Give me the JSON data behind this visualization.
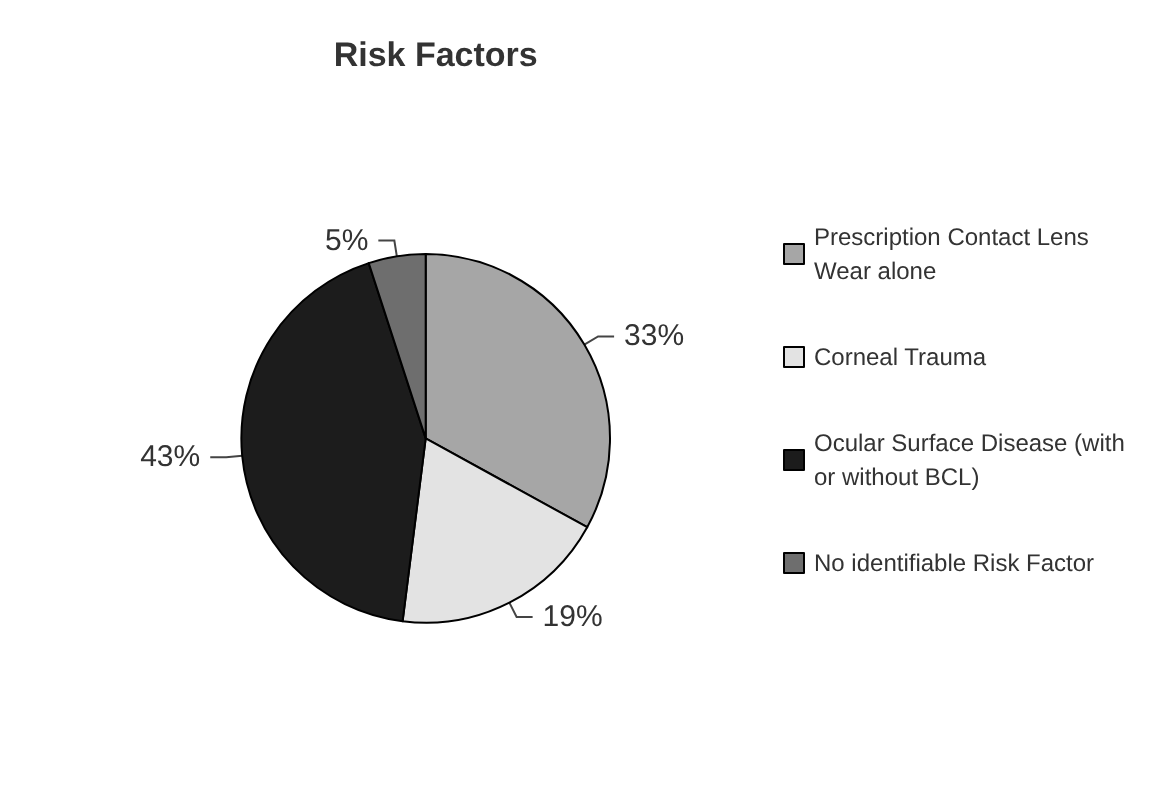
{
  "chart_data": {
    "type": "pie",
    "title": "Risk Factors",
    "categories": [
      "Prescription Contact Lens Wear alone",
      "Corneal Trauma",
      "Ocular Surface Disease (with or without BCL)",
      "No identifiable Risk Factor"
    ],
    "values": [
      33,
      19,
      43,
      5
    ],
    "colors": [
      "#a6a6a6",
      "#e3e3e3",
      "#1c1c1c",
      "#6e6e6e"
    ],
    "value_labels": [
      "33%",
      "19%",
      "43%",
      "5%"
    ],
    "legend": "right"
  }
}
